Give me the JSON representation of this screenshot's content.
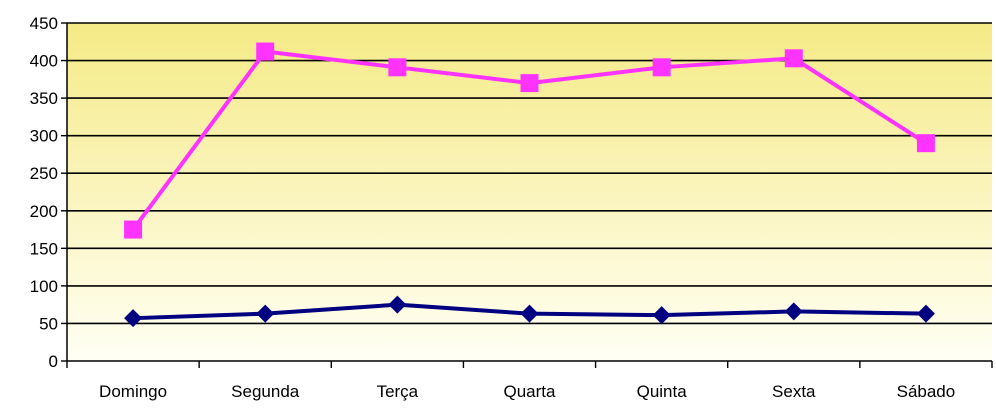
{
  "chart_data": {
    "type": "line",
    "title": "",
    "xlabel": "",
    "ylabel": "",
    "categories": [
      "Domingo",
      "Segunda",
      "Terça",
      "Quarta",
      "Quinta",
      "Sexta",
      "Sábado"
    ],
    "ylim": [
      0,
      450
    ],
    "yticks": [
      0,
      50,
      100,
      150,
      200,
      250,
      300,
      350,
      400,
      450
    ],
    "grid": true,
    "legend": "none",
    "background_gradient": [
      "#f5ea86",
      "#fffff4"
    ],
    "series": [
      {
        "values": [
          175,
          412,
          391,
          370,
          391,
          403,
          290
        ],
        "color": "#ff33ff",
        "marker": "square"
      },
      {
        "values": [
          57,
          63,
          75,
          63,
          61,
          66,
          63
        ],
        "color": "#000080",
        "marker": "diamond"
      }
    ]
  }
}
